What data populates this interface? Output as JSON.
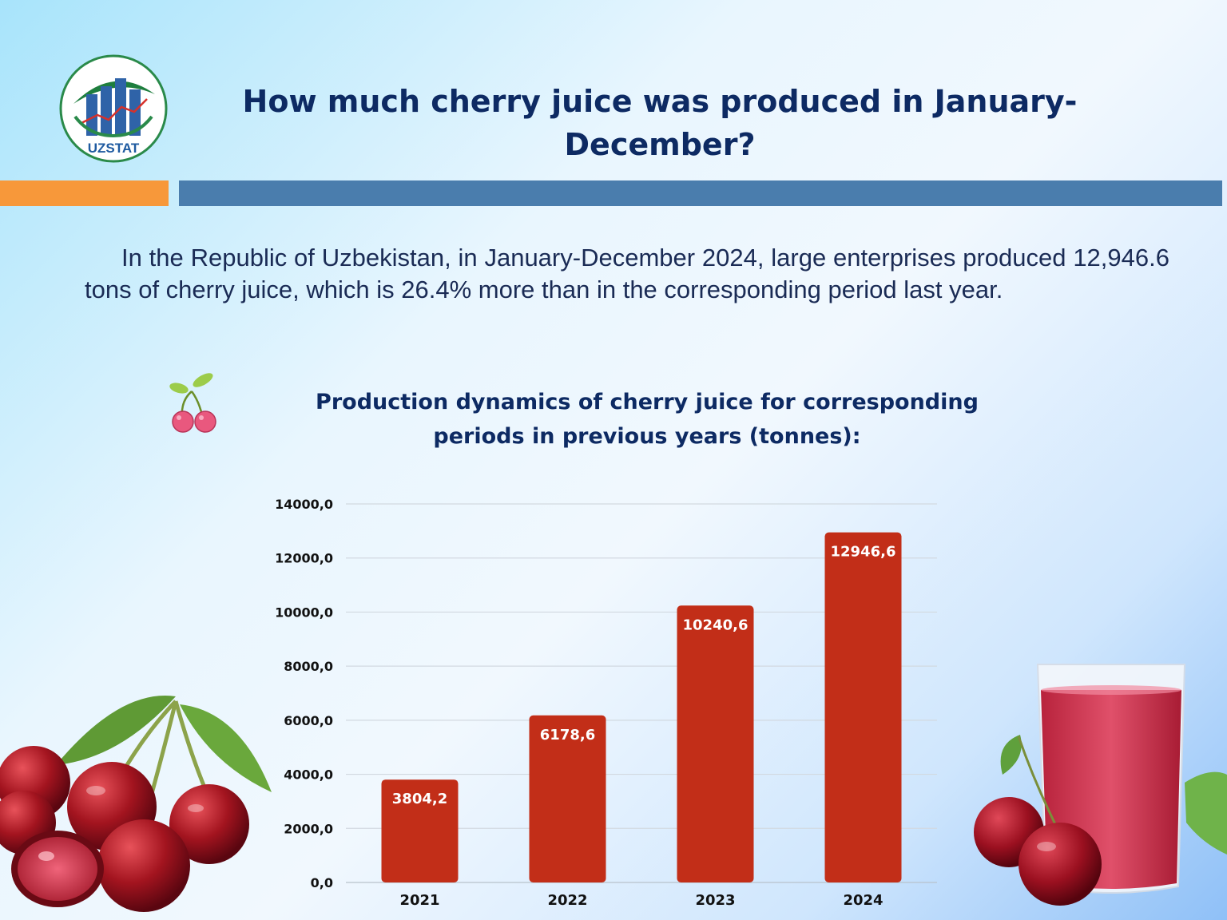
{
  "logo": {
    "text": "UZSTAT"
  },
  "header": {
    "title": "How much cherry juice was produced in January-December?"
  },
  "intro": {
    "text": "In the Republic of Uzbekistan, in January-December 2024, large enterprises produced 12,946.6 tons of cherry juice, which is 26.4% more than in the corresponding period last year."
  },
  "chart_data": {
    "type": "bar",
    "title": "Production dynamics of cherry juice for corresponding periods in previous years (tonnes):",
    "categories": [
      "2021",
      "2022",
      "2023",
      "2024"
    ],
    "values": [
      3804.2,
      6178.6,
      10240.6,
      12946.6
    ],
    "value_labels": [
      "3804,2",
      "6178,6",
      "10240,6",
      "12946,6"
    ],
    "ylim": [
      0,
      14000
    ],
    "yticks": [
      "0,0",
      "2000,0",
      "4000,0",
      "6000,0",
      "8000,0",
      "10000,0",
      "12000,0",
      "14000,0"
    ],
    "bar_color": "#c22e18",
    "grid": true,
    "xlabel": "",
    "ylabel": ""
  }
}
